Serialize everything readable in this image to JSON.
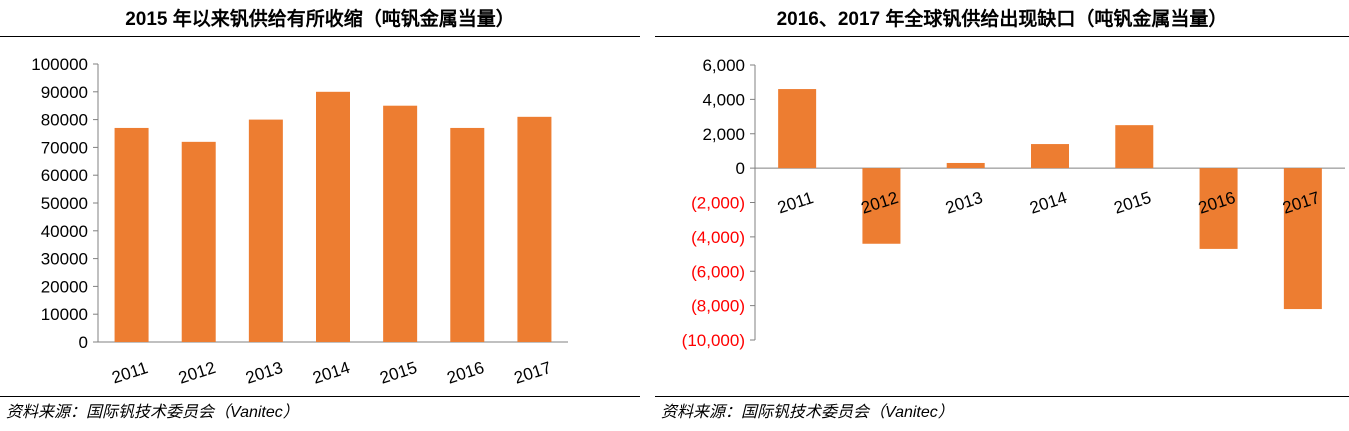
{
  "colors": {
    "bar": "#ED7D31",
    "negative_label": "#FF0000",
    "axis": "#808080",
    "text": "#000000"
  },
  "left_panel": {
    "title": "2015 年以来钒供给有所收缩（吨钒金属当量）",
    "source": "资料来源：国际钒技术委员会（Vanitec）"
  },
  "right_panel": {
    "title": "2016、2017 年全球钒供给出现缺口（吨钒金属当量）",
    "source": "资料来源：国际钒技术委员会（Vanitec）"
  },
  "chart_data": [
    {
      "type": "bar",
      "title": "2015 年以来钒供给有所收缩（吨钒金属当量）",
      "categories": [
        "2011",
        "2012",
        "2013",
        "2014",
        "2015",
        "2016",
        "2017"
      ],
      "values": [
        77000,
        72000,
        80000,
        90000,
        85000,
        77000,
        81000
      ],
      "ylim": [
        0,
        100000
      ],
      "yticks": [
        0,
        10000,
        20000,
        30000,
        40000,
        50000,
        60000,
        70000,
        80000,
        90000,
        100000
      ],
      "ytick_labels": [
        "0",
        "10000",
        "20000",
        "30000",
        "40000",
        "50000",
        "60000",
        "70000",
        "80000",
        "90000",
        "100000"
      ],
      "xlabel": "",
      "ylabel": "",
      "grid": false,
      "legend": "none"
    },
    {
      "type": "bar",
      "title": "2016、2017 年全球钒供给出现缺口（吨钒金属当量）",
      "categories": [
        "2011",
        "2012",
        "2013",
        "2014",
        "2015",
        "2016",
        "2017"
      ],
      "values": [
        4600,
        -4400,
        300,
        1400,
        2500,
        -4700,
        -8200
      ],
      "ylim": [
        -10000,
        6000
      ],
      "yticks": [
        6000,
        4000,
        2000,
        0,
        -2000,
        -4000,
        -6000,
        -8000,
        -10000
      ],
      "ytick_labels": [
        "6,000",
        "4,000",
        "2,000",
        "0",
        "(2,000)",
        "(4,000)",
        "(6,000)",
        "(8,000)",
        "(10,000)"
      ],
      "xlabel": "",
      "ylabel": "",
      "grid": false,
      "legend": "none"
    }
  ]
}
